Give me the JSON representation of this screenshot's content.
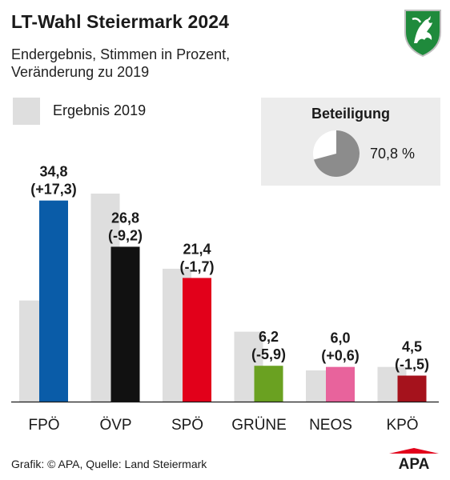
{
  "header": {
    "title": "LT-Wahl Steiermark 2024",
    "subtitle_line1": "Endergebnis, Stimmen in Prozent,",
    "subtitle_line2": "Veränderung zu 2019"
  },
  "legend": {
    "label_2019": "Ergebnis 2019"
  },
  "turnout": {
    "title": "Beteiligung",
    "value": 70.8,
    "value_label": "70,8 %"
  },
  "footer": {
    "source": "Grafik: © APA, Quelle: Land Steiermark",
    "logo_text": "APA"
  },
  "chart_data": {
    "type": "bar",
    "title": "LT-Wahl Steiermark 2024",
    "ylim": [
      0,
      36
    ],
    "categories": [
      "FPÖ",
      "ÖVP",
      "SPÖ",
      "GRÜNE",
      "NEOS",
      "KPÖ"
    ],
    "series": [
      {
        "name": "Ergebnis 2019",
        "values": [
          17.5,
          36.0,
          23.0,
          12.1,
          5.4,
          6.0
        ]
      },
      {
        "values": [
          34.8,
          26.8,
          21.4,
          6.2,
          6.0,
          4.5
        ]
      }
    ],
    "value_labels": [
      "34,8",
      "26,8",
      "21,4",
      "6,2",
      "6,0",
      "4,5"
    ],
    "change_labels": [
      "(+17,3)",
      "(-9,2)",
      "(-1,7)",
      "(-5,9)",
      "(+0,6)",
      "(-1,5)"
    ],
    "colors_2024": [
      "#0a5ca8",
      "#111111",
      "#e2001a",
      "#6aa121",
      "#e8639c",
      "#a5121c"
    ],
    "color_2019": "#dedede",
    "grid": false,
    "legend_placement": "top-left"
  }
}
